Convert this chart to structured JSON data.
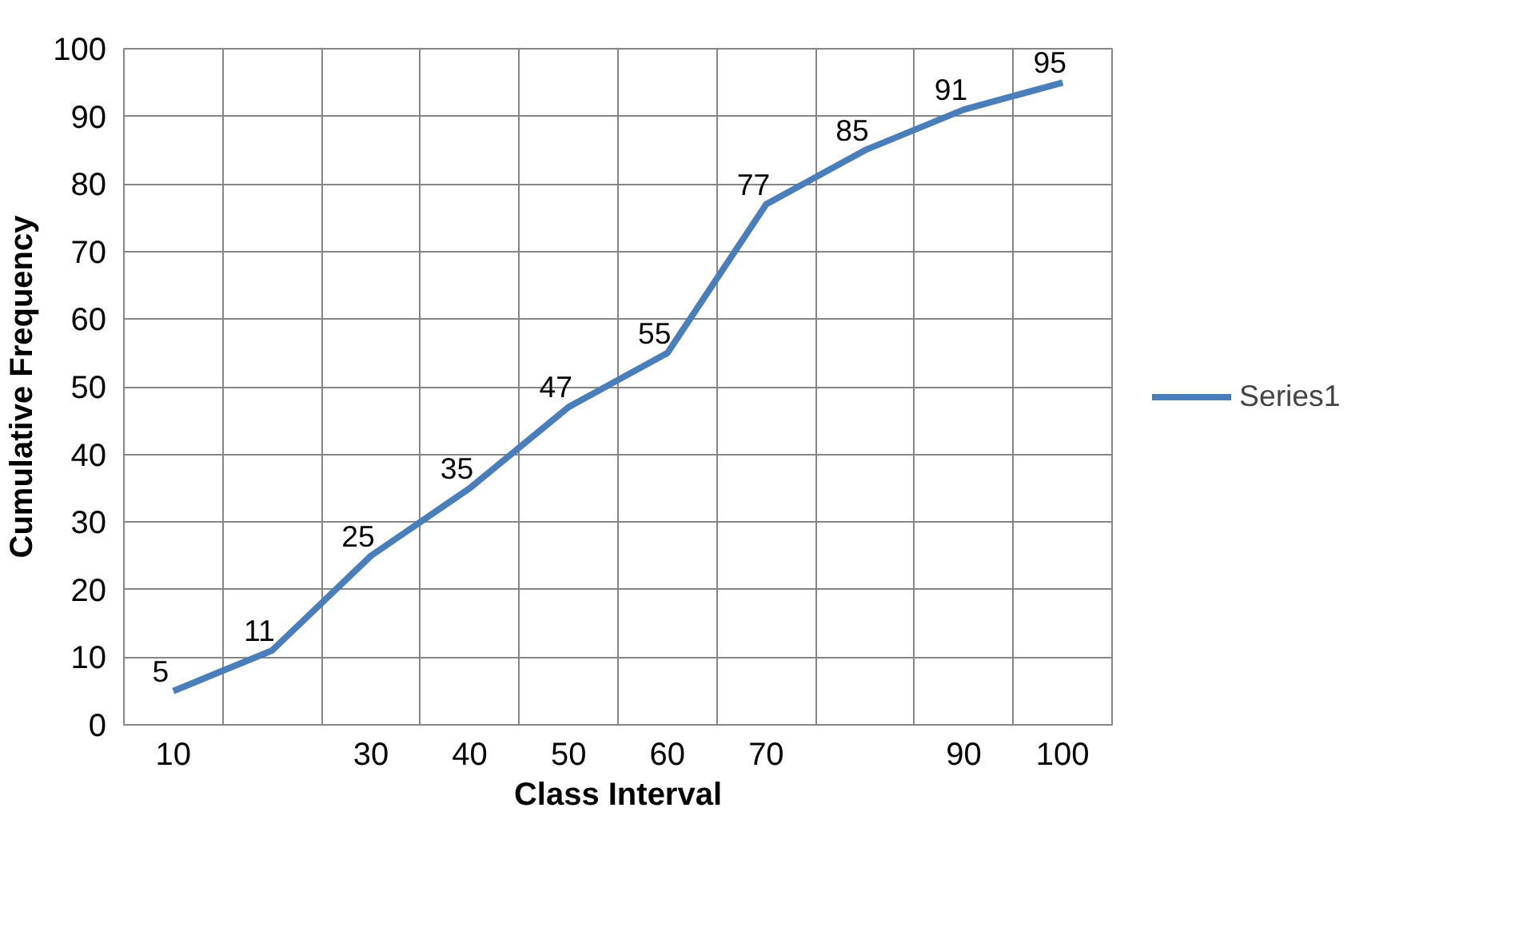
{
  "chart_data": {
    "type": "line",
    "xlabel": "Class Interval",
    "ylabel": "Cumulative Frequency",
    "categories": [
      "10",
      null,
      "30",
      "40",
      "50",
      "60",
      "70",
      null,
      "90",
      "100"
    ],
    "series": [
      {
        "name": "Series1",
        "color": "#4a7ebb",
        "values": [
          5,
          11,
          25,
          35,
          47,
          55,
          77,
          85,
          91,
          95
        ]
      }
    ],
    "ylim": [
      0,
      100
    ],
    "yticks": [
      0,
      10,
      20,
      30,
      40,
      50,
      60,
      70,
      80,
      90,
      100
    ],
    "grid": true,
    "legend": "right",
    "data_labels": true,
    "marker": "none",
    "line_style": "solid"
  }
}
